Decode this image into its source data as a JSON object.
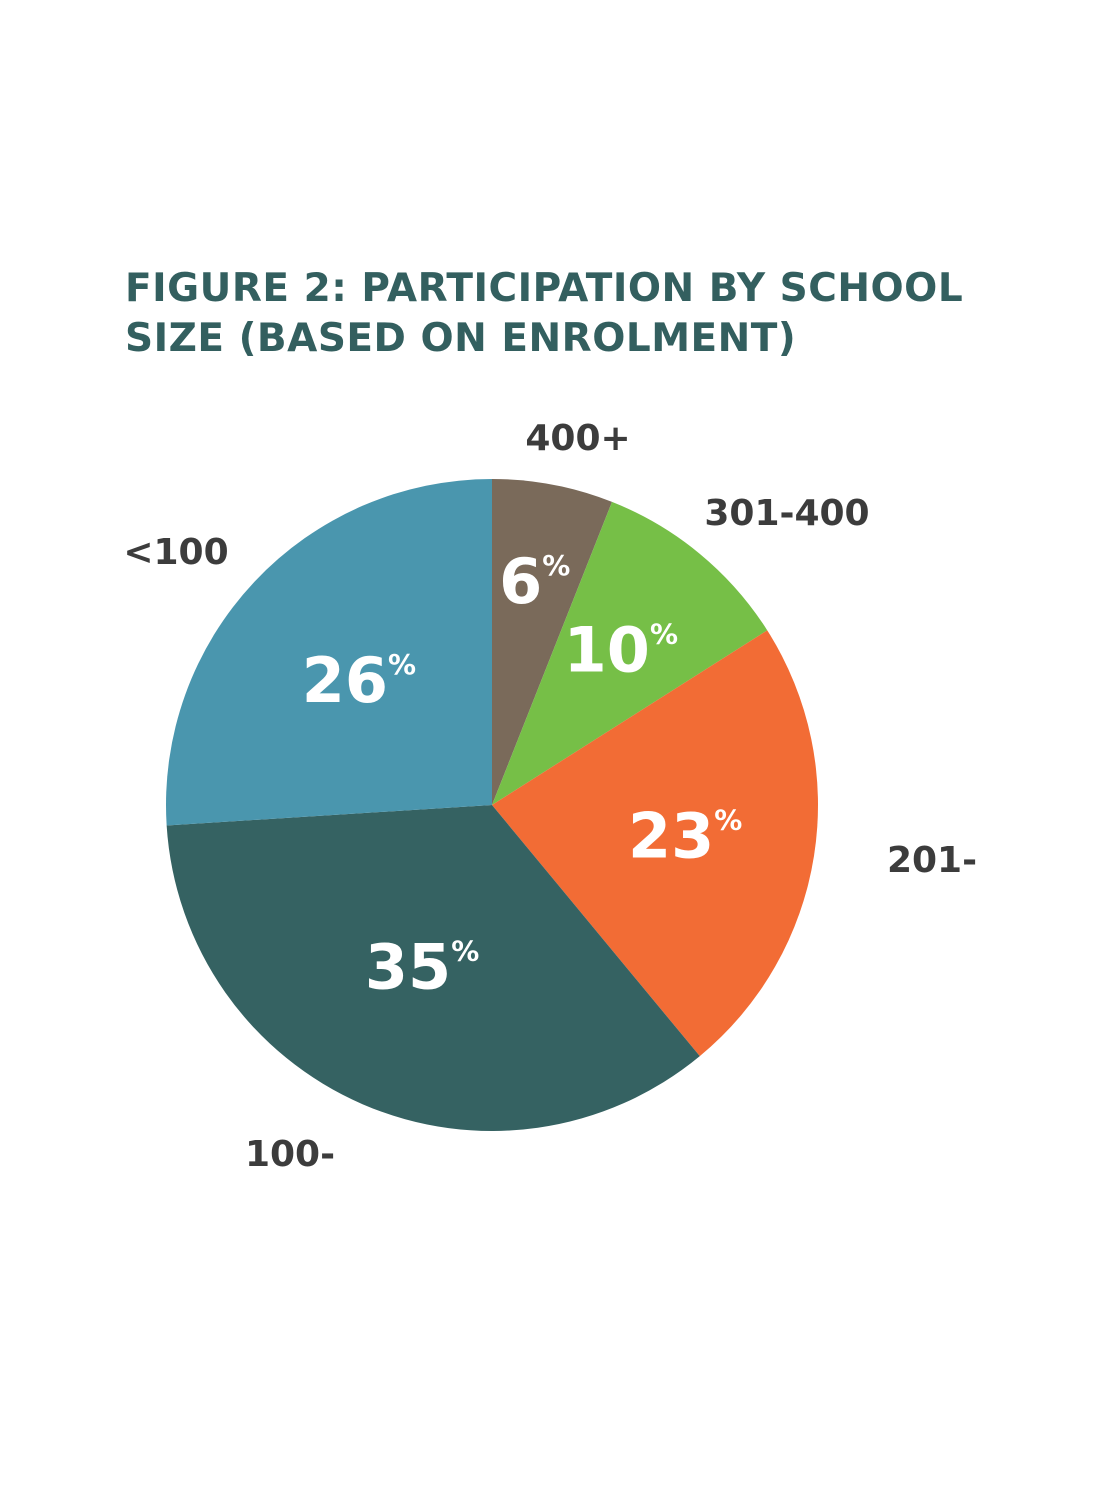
{
  "title_lines": [
    "FIGURE 2: PARTICIPATION BY SCHOOL",
    "SIZE (BASED ON ENROLMENT)"
  ],
  "chart_data": {
    "type": "pie",
    "title": "FIGURE 2: PARTICIPATION BY SCHOOL SIZE (BASED ON ENROLMENT)",
    "start": "12 o'clock, clockwise",
    "slices": [
      {
        "label": "400+",
        "value": 6,
        "value_label": "6",
        "color": "#7a6a5a"
      },
      {
        "label": "301-400",
        "value": 10,
        "value_label": "10",
        "color": "#76bf47"
      },
      {
        "label": "201-",
        "value": 23,
        "value_label": "23",
        "color": "#f26c35"
      },
      {
        "label": "100-",
        "value": 35,
        "value_label": "35",
        "color": "#356262"
      },
      {
        "label": "<100",
        "value": 26,
        "value_label": "26",
        "color": "#4a96ae"
      }
    ],
    "percent_sign": "%"
  }
}
